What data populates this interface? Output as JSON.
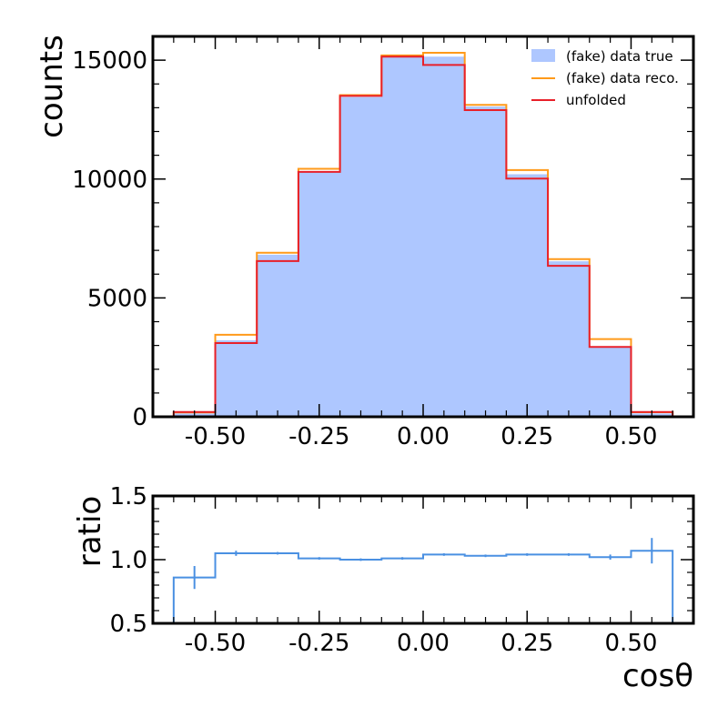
{
  "chart_data": [
    {
      "type": "histogram",
      "ylabel": "counts",
      "xlim": [
        -0.65,
        0.65
      ],
      "ylim": [
        0,
        16000
      ],
      "bin_edges": [
        -0.6,
        -0.5,
        -0.4,
        -0.3,
        -0.2,
        -0.1,
        0.0,
        0.1,
        0.2,
        0.3,
        0.4,
        0.5,
        0.6
      ],
      "xticks": [
        -0.5,
        -0.25,
        0.0,
        0.25,
        0.5
      ],
      "xtick_labels": [
        "-0.50",
        "-0.25",
        "0.00",
        "0.25",
        "0.50"
      ],
      "yticks": [
        0,
        5000,
        10000,
        15000
      ],
      "ytick_labels": [
        "0",
        "5000",
        "10000",
        "15000"
      ],
      "legend_position": "top-right",
      "series": [
        {
          "name": "(fake) data true",
          "style": "filled-step",
          "color": "#aec7ff",
          "values": [
            140,
            3220,
            6820,
            10320,
            13450,
            15180,
            15150,
            13050,
            10200,
            6540,
            2950,
            140
          ]
        },
        {
          "name": "(fake) data reco.",
          "style": "step",
          "color": "#ff9a1a",
          "values": [
            180,
            3450,
            6900,
            10430,
            13530,
            15200,
            15310,
            13120,
            10380,
            6630,
            3270,
            190
          ]
        },
        {
          "name": "unfolded",
          "style": "step",
          "color": "#e8202a",
          "values": [
            200,
            3100,
            6550,
            10300,
            13500,
            15150,
            14800,
            12900,
            10020,
            6350,
            2940,
            200
          ]
        }
      ]
    },
    {
      "type": "ratio",
      "xlabel": "cosθ",
      "ylabel": "ratio",
      "xlim": [
        -0.65,
        0.65
      ],
      "ylim": [
        0.5,
        1.5
      ],
      "bin_edges": [
        -0.6,
        -0.5,
        -0.4,
        -0.3,
        -0.2,
        -0.1,
        0.0,
        0.1,
        0.2,
        0.3,
        0.4,
        0.5,
        0.6
      ],
      "xticks": [
        -0.5,
        -0.25,
        0.0,
        0.25,
        0.5
      ],
      "xtick_labels": [
        "-0.50",
        "-0.25",
        "0.00",
        "0.25",
        "0.50"
      ],
      "yticks": [
        0.5,
        1.0,
        1.5
      ],
      "ytick_labels": [
        "0.5",
        "1.0",
        "1.5"
      ],
      "series": [
        {
          "color": "#4a90e2",
          "values": [
            0.86,
            1.05,
            1.05,
            1.01,
            1.0,
            1.01,
            1.04,
            1.03,
            1.04,
            1.04,
            1.02,
            1.07
          ],
          "errors": [
            0.09,
            0.02,
            0.01,
            0.01,
            0.01,
            0.01,
            0.01,
            0.01,
            0.01,
            0.01,
            0.02,
            0.1
          ]
        }
      ]
    }
  ]
}
